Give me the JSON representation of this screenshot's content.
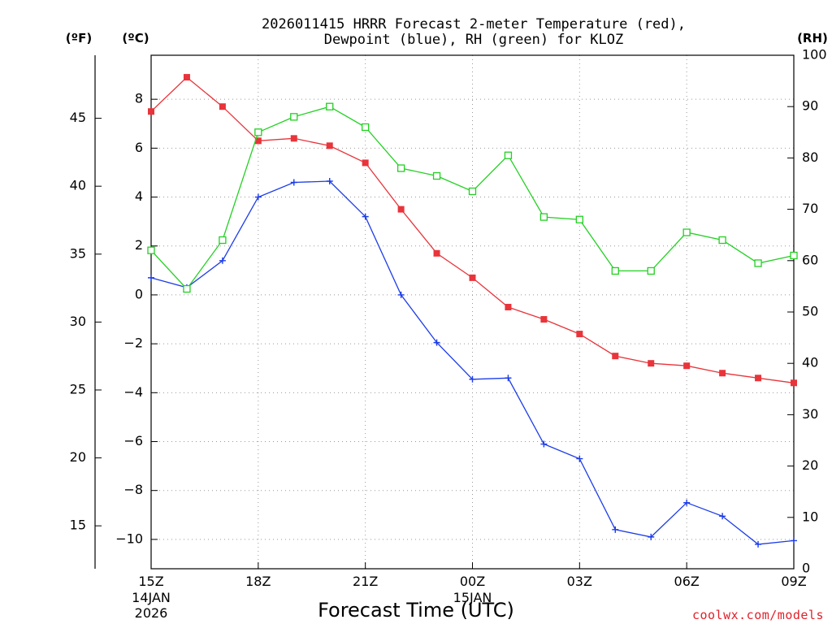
{
  "chart_data": {
    "type": "line",
    "title": {
      "line1": "2026011415 HRRR Forecast 2-meter Temperature (red),",
      "line2": "Dewpoint (blue), RH (green) for KLOZ"
    },
    "xlabel": "Forecast Time (UTC)",
    "credit": "coolwx.com/models",
    "units": {
      "fahrenheit": "(ºF)",
      "celsius": "(ºC)",
      "rh": "(RH)"
    },
    "x": [
      0,
      1,
      2,
      3,
      4,
      5,
      6,
      7,
      8,
      9,
      10,
      11,
      12,
      13,
      14,
      15,
      16,
      17,
      18
    ],
    "xlim": [
      0,
      18
    ],
    "x_ticks": [
      {
        "x": 0,
        "label": "15Z",
        "sub1": "14JAN",
        "sub2": "2026"
      },
      {
        "x": 3,
        "label": "18Z"
      },
      {
        "x": 6,
        "label": "21Z"
      },
      {
        "x": 9,
        "label": "00Z",
        "sub1": "15JAN"
      },
      {
        "x": 12,
        "label": "03Z"
      },
      {
        "x": 15,
        "label": "06Z"
      },
      {
        "x": 18,
        "label": "09Z"
      }
    ],
    "y_celsius": {
      "lim": [
        -11.2,
        9.8
      ],
      "ticks": [
        8,
        6,
        4,
        2,
        0,
        -2,
        -4,
        -6,
        -8,
        -10
      ],
      "tick_labels": [
        "8",
        "6",
        "4",
        "2",
        "0",
        "−2",
        "−4",
        "−6",
        "−8",
        "−10"
      ]
    },
    "y_fahrenheit": {
      "ticks": [
        45,
        40,
        35,
        30,
        25,
        20,
        15
      ],
      "tick_labels": [
        "45",
        "40",
        "35",
        "30",
        "25",
        "20",
        "15"
      ]
    },
    "y_rh": {
      "lim": [
        0,
        100
      ],
      "ticks": [
        100,
        90,
        80,
        70,
        60,
        50,
        40,
        30,
        20,
        10,
        0
      ],
      "tick_labels": [
        "100",
        "90",
        "80",
        "70",
        "60",
        "50",
        "40",
        "30",
        "20",
        "10",
        "0"
      ]
    },
    "series": [
      {
        "name": "Temperature",
        "axis": "celsius",
        "color": "#e8343a",
        "marker": "filled-square",
        "values": [
          7.5,
          8.9,
          7.7,
          6.3,
          6.4,
          6.1,
          5.4,
          3.5,
          1.7,
          0.7,
          -0.5,
          -1.0,
          -1.6,
          -2.5,
          -2.8,
          -2.9,
          -3.2,
          -3.4,
          -3.6
        ]
      },
      {
        "name": "Dewpoint",
        "axis": "celsius",
        "color": "#1c3ce8",
        "marker": "plus",
        "values": [
          0.7,
          0.3,
          1.4,
          4.0,
          4.6,
          4.65,
          3.2,
          0.0,
          -1.95,
          -3.45,
          -3.4,
          -6.1,
          -6.7,
          -9.6,
          -9.9,
          -8.5,
          -9.05,
          -10.2,
          -10.05
        ]
      },
      {
        "name": "RH",
        "axis": "rh",
        "color": "#22d022",
        "marker": "open-square",
        "values": [
          62,
          54.5,
          64,
          85,
          88,
          90,
          86,
          78,
          76.5,
          73.5,
          80.5,
          68.5,
          68,
          58,
          58,
          65.5,
          64,
          59.5,
          61
        ]
      }
    ]
  }
}
